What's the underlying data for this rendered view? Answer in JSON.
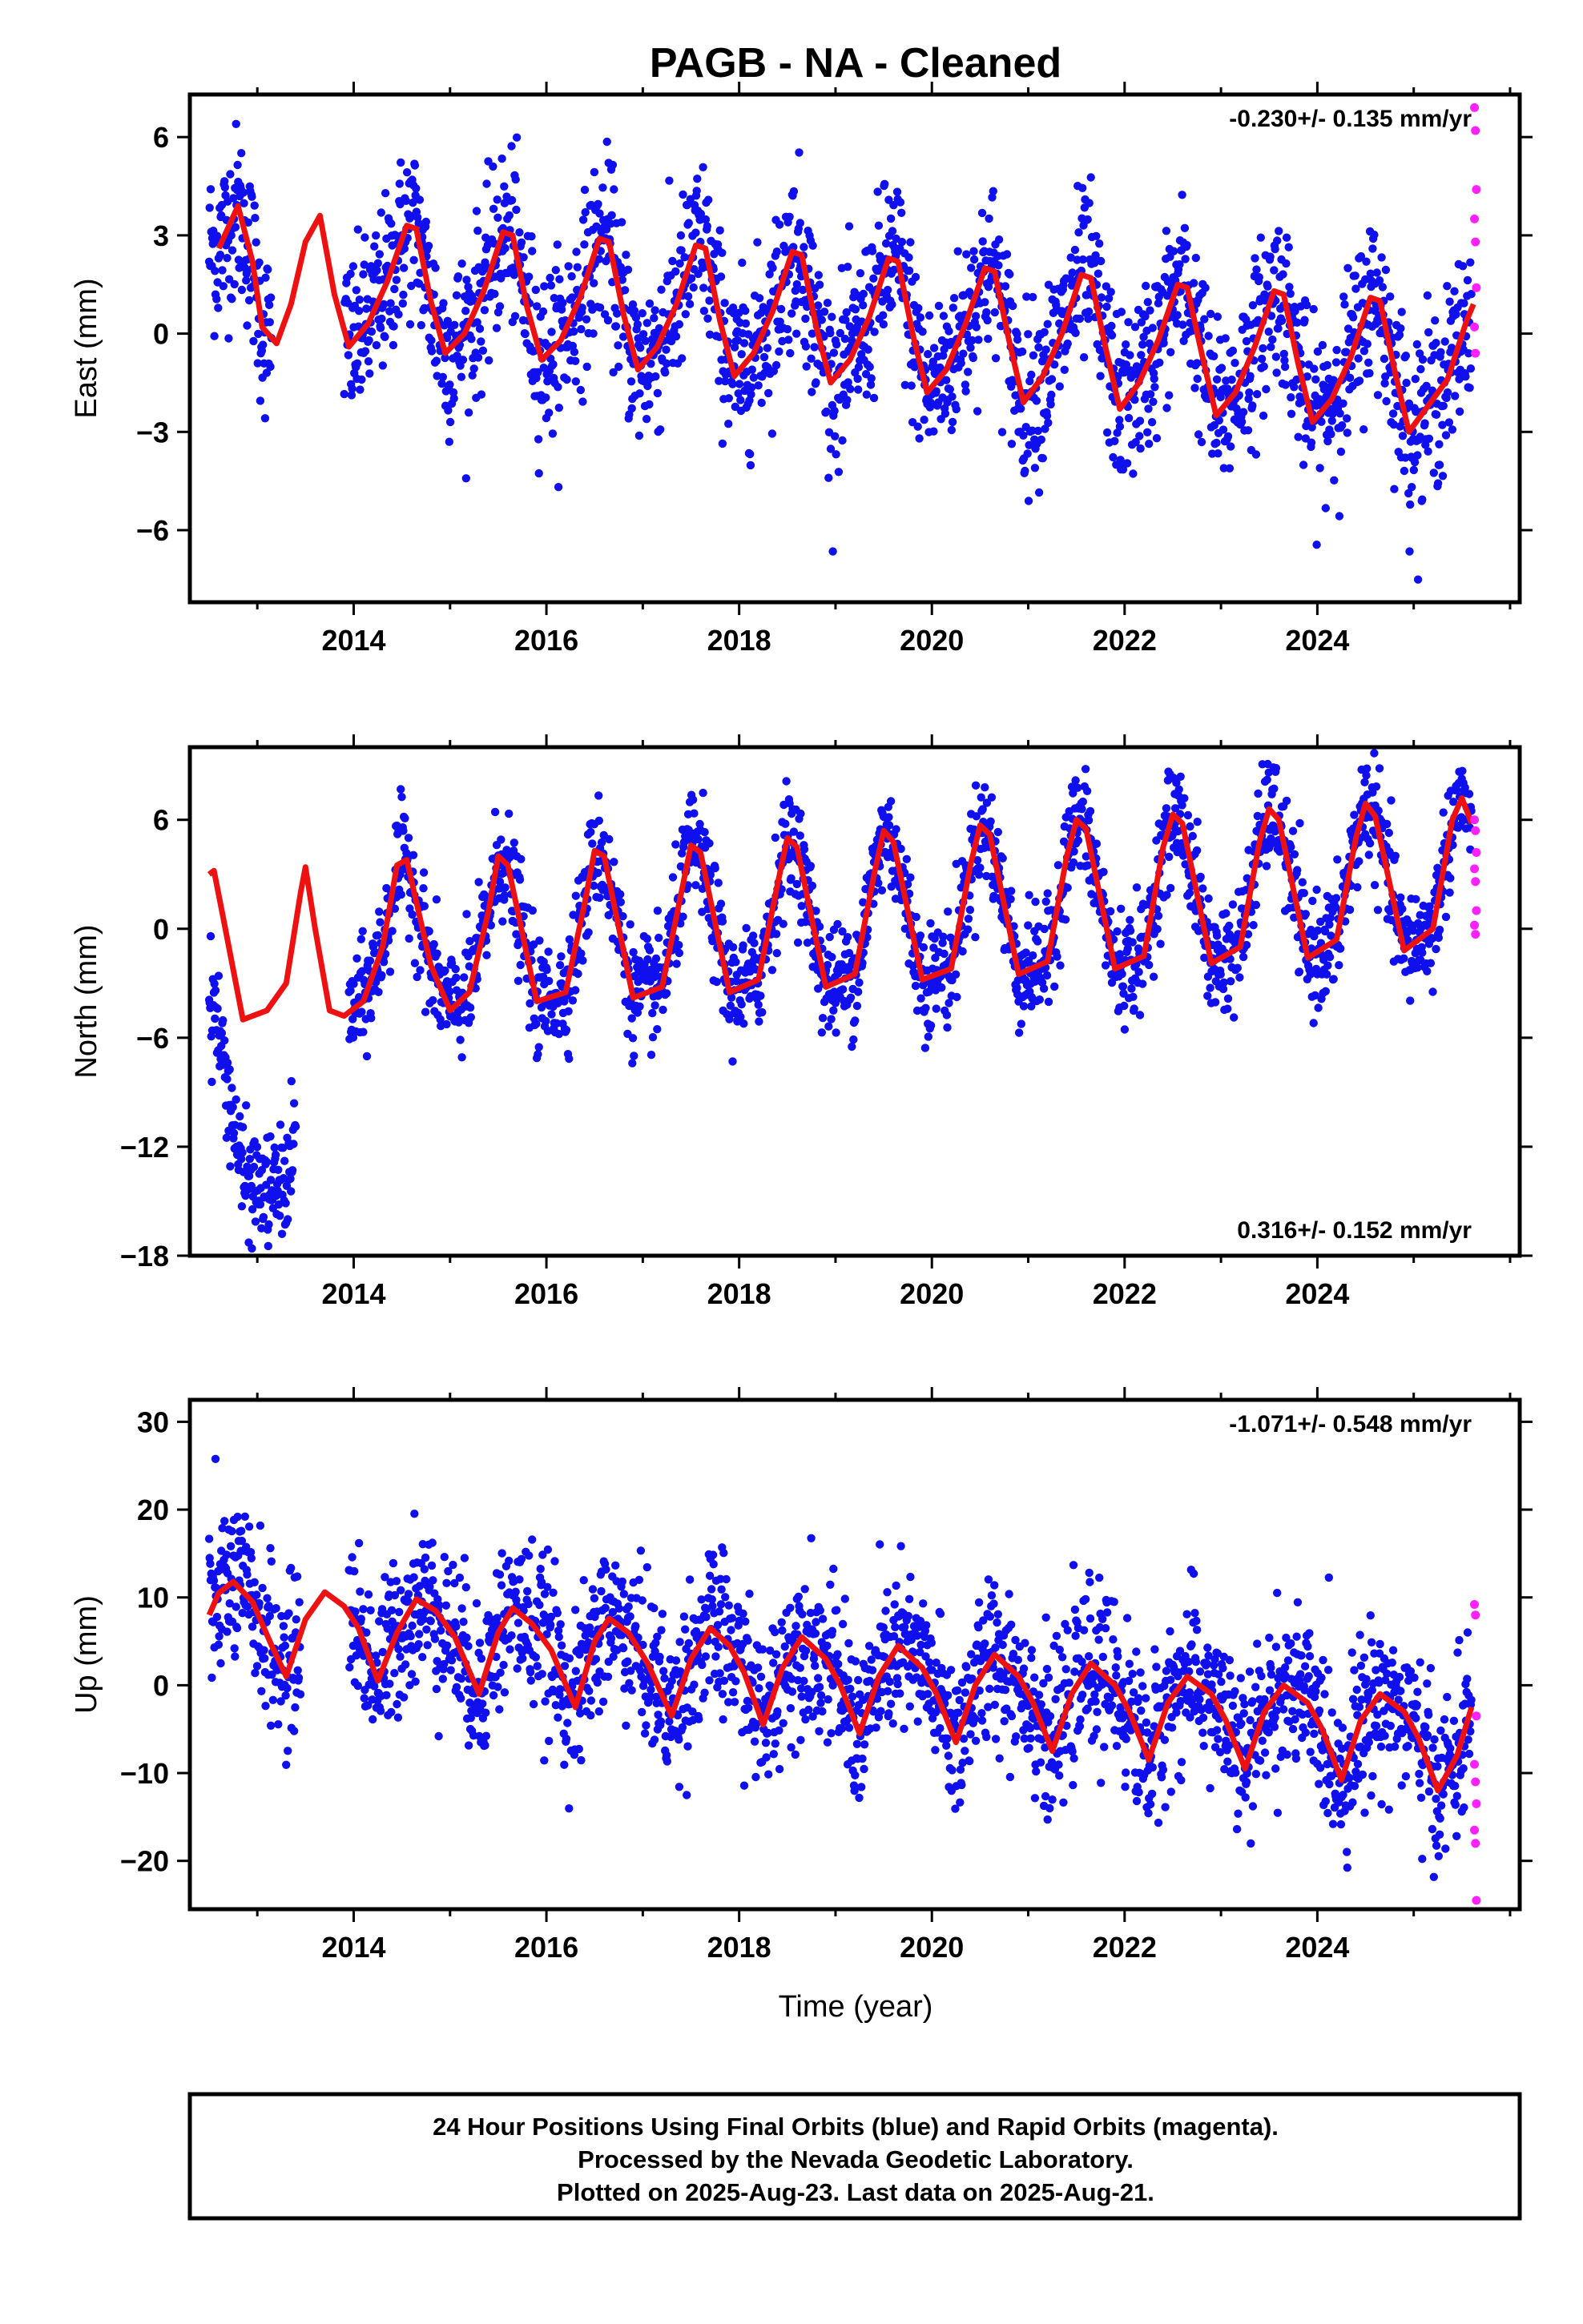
{
  "title": "PAGB  - NA - Cleaned",
  "colors": {
    "final": "#1010ee",
    "rapid": "#ff20ff",
    "model": "#ee1111",
    "frame": "#000000"
  },
  "xlabel": "Time (year)",
  "footer": {
    "line1": "24 Hour Positions Using Final Orbits (blue) and Rapid Orbits (magenta).",
    "line2": "Processed by the Nevada Geodetic Laboratory.",
    "line3": "Plotted on 2025-Aug-23. Last data on 2025-Aug-21."
  },
  "chart_data": [
    {
      "type": "scatter",
      "component": "East",
      "ylabel": "East (mm)",
      "rate_label": "-0.230+/- 0.135 mm/yr",
      "xlim": [
        2012.3,
        2026.1
      ],
      "ylim": [
        -8.2,
        7.3
      ],
      "yticks": [
        -6,
        -3,
        0,
        3,
        6
      ],
      "ytick_labels": [
        "−6",
        "−3",
        "0",
        "3",
        "6"
      ],
      "xticks": [
        2014,
        2016,
        2018,
        2020,
        2022,
        2024
      ],
      "xtick_labels": [
        "2014",
        "2016",
        "2018",
        "2020",
        "2022",
        "2024"
      ],
      "model": {
        "x": [
          2012.6,
          2012.8,
          2012.95,
          2013.05,
          2013.2,
          2013.35,
          2013.5,
          2013.65,
          2013.8,
          2013.95,
          2014.15,
          2014.35,
          2014.55,
          2014.65,
          2014.8,
          2014.95,
          2015.15,
          2015.35,
          2015.55,
          2015.65,
          2015.8,
          2015.95,
          2016.15,
          2016.35,
          2016.55,
          2016.65,
          2016.8,
          2016.95,
          2017.15,
          2017.35,
          2017.55,
          2017.65,
          2017.8,
          2017.95,
          2018.15,
          2018.35,
          2018.55,
          2018.65,
          2018.8,
          2018.95,
          2019.15,
          2019.35,
          2019.55,
          2019.65,
          2019.8,
          2019.95,
          2020.15,
          2020.35,
          2020.55,
          2020.65,
          2020.8,
          2020.95,
          2021.15,
          2021.35,
          2021.55,
          2021.65,
          2021.8,
          2021.95,
          2022.15,
          2022.35,
          2022.55,
          2022.65,
          2022.8,
          2022.95,
          2023.15,
          2023.35,
          2023.55,
          2023.65,
          2023.8,
          2023.95,
          2024.15,
          2024.35,
          2024.55,
          2024.65,
          2024.8,
          2024.95,
          2025.15,
          2025.35,
          2025.55,
          2025.62
        ],
        "y": [
          2.6,
          3.9,
          2.2,
          0.2,
          -0.3,
          0.9,
          2.8,
          3.6,
          1.2,
          -0.4,
          0.3,
          1.6,
          3.3,
          3.2,
          1.0,
          -0.6,
          0.0,
          1.3,
          3.1,
          3.0,
          0.8,
          -0.8,
          -0.2,
          1.1,
          2.9,
          2.8,
          0.6,
          -1.1,
          -0.4,
          0.9,
          2.7,
          2.6,
          0.4,
          -1.3,
          -0.6,
          0.7,
          2.5,
          2.4,
          0.2,
          -1.5,
          -0.8,
          0.5,
          2.3,
          2.2,
          0.0,
          -1.8,
          -1.1,
          0.3,
          2.0,
          1.9,
          -0.2,
          -2.1,
          -1.3,
          0.0,
          1.8,
          1.7,
          -0.4,
          -2.3,
          -1.5,
          -0.2,
          1.5,
          1.4,
          -0.6,
          -2.5,
          -1.8,
          -0.4,
          1.3,
          1.2,
          -0.9,
          -2.7,
          -2.0,
          -0.7,
          1.1,
          1.0,
          -1.1,
          -3.0,
          -2.2,
          -1.4,
          0.4,
          0.9
        ]
      },
      "rapid": {
        "x": [
          2025.63,
          2025.64,
          2025.65,
          2025.63,
          2025.64,
          2025.65,
          2025.63,
          2025.64
        ],
        "y": [
          6.9,
          6.2,
          4.4,
          3.5,
          2.8,
          1.4,
          0.2,
          -0.6
        ]
      },
      "final_summary": {
        "x_start": 2012.5,
        "x_end": 2025.6,
        "gaps": [
          [
            2013.15,
            2013.9
          ]
        ],
        "scatter_sd_mm": 1.3,
        "rate_mm_per_yr": -0.23
      }
    },
    {
      "type": "scatter",
      "component": "North",
      "ylabel": "North (mm)",
      "rate_label": "0.316+/- 0.152 mm/yr",
      "xlim": [
        2012.3,
        2026.1
      ],
      "ylim": [
        -18,
        10
      ],
      "yticks": [
        -18,
        -12,
        -6,
        0,
        6
      ],
      "ytick_labels": [
        "−18",
        "−12",
        "−6",
        "0",
        "6"
      ],
      "xticks": [
        2014,
        2016,
        2018,
        2020,
        2022,
        2024
      ],
      "xtick_labels": [
        "2014",
        "2016",
        "2018",
        "2020",
        "2022",
        "2024"
      ],
      "model": {
        "x": [
          2012.5,
          2012.55,
          2012.65,
          2012.85,
          2013.1,
          2013.3,
          2013.45,
          2013.5,
          2013.6,
          2013.75,
          2013.9,
          2014.1,
          2014.3,
          2014.45,
          2014.55,
          2014.8,
          2015.0,
          2015.2,
          2015.4,
          2015.5,
          2015.6,
          2015.9,
          2016.2,
          2016.4,
          2016.5,
          2016.6,
          2016.9,
          2017.2,
          2017.4,
          2017.5,
          2017.6,
          2017.9,
          2018.2,
          2018.4,
          2018.5,
          2018.6,
          2018.9,
          2019.2,
          2019.4,
          2019.5,
          2019.6,
          2019.9,
          2020.2,
          2020.4,
          2020.5,
          2020.6,
          2020.9,
          2021.2,
          2021.4,
          2021.5,
          2021.6,
          2021.9,
          2022.2,
          2022.4,
          2022.5,
          2022.6,
          2022.9,
          2023.2,
          2023.4,
          2023.5,
          2023.6,
          2023.9,
          2024.2,
          2024.4,
          2024.5,
          2024.6,
          2024.9,
          2025.2,
          2025.4,
          2025.5,
          2025.6
        ],
        "y": [
          3.0,
          3.2,
          0.5,
          -5.0,
          -4.5,
          -3.0,
          2.0,
          3.4,
          0.0,
          -4.5,
          -4.8,
          -4.0,
          -1.0,
          3.5,
          3.8,
          -2.0,
          -4.5,
          -3.5,
          1.0,
          4.0,
          3.5,
          -4.0,
          -3.5,
          1.5,
          4.3,
          4.0,
          -3.8,
          -3.2,
          2.0,
          4.6,
          4.2,
          -3.5,
          -2.8,
          2.5,
          5.0,
          4.5,
          -3.2,
          -2.5,
          3.0,
          5.4,
          4.8,
          -2.8,
          -2.2,
          3.5,
          5.7,
          5.2,
          -2.5,
          -1.8,
          4.0,
          6.0,
          5.5,
          -2.2,
          -1.5,
          4.5,
          6.3,
          5.8,
          -1.9,
          -1.0,
          4.8,
          6.6,
          6.0,
          -1.6,
          -0.6,
          5.0,
          6.9,
          6.2,
          -1.2,
          0.0,
          6.0,
          7.2,
          5.8
        ]
      },
      "rapid": {
        "x": [
          2025.63,
          2025.64,
          2025.65,
          2025.63,
          2025.64,
          2025.65,
          2025.63,
          2025.64
        ],
        "y": [
          6.0,
          5.4,
          4.2,
          3.3,
          2.6,
          1.0,
          0.2,
          -0.3
        ]
      },
      "final_summary": {
        "x_start": 2012.5,
        "x_end": 2025.6,
        "gaps": [
          [
            2013.4,
            2013.95
          ]
        ],
        "scatter_sd_mm": 1.5,
        "early_offset_mm": -7.0,
        "rate_mm_per_yr": 0.316
      }
    },
    {
      "type": "scatter",
      "component": "Up",
      "ylabel": "Up (mm)",
      "rate_label": "-1.071+/- 0.548 mm/yr",
      "xlim": [
        2012.3,
        2026.1
      ],
      "ylim": [
        -25.5,
        32.5
      ],
      "yticks": [
        -20,
        -10,
        0,
        10,
        20,
        30
      ],
      "ytick_labels": [
        "−20",
        "−10",
        "0",
        "10",
        "20",
        "30"
      ],
      "xticks": [
        2014,
        2016,
        2018,
        2020,
        2022,
        2024
      ],
      "xtick_labels": [
        "2014",
        "2016",
        "2018",
        "2020",
        "2022",
        "2024"
      ],
      "model": {
        "x": [
          2012.5,
          2012.6,
          2012.75,
          2012.95,
          2013.15,
          2013.3,
          2013.5,
          2013.7,
          2013.9,
          2014.05,
          2014.25,
          2014.45,
          2014.65,
          2014.85,
          2015.05,
          2015.3,
          2015.5,
          2015.65,
          2015.85,
          2016.05,
          2016.3,
          2016.5,
          2016.65,
          2016.85,
          2017.05,
          2017.3,
          2017.5,
          2017.7,
          2017.9,
          2018.05,
          2018.25,
          2018.45,
          2018.65,
          2018.9,
          2019.05,
          2019.25,
          2019.45,
          2019.65,
          2019.9,
          2020.05,
          2020.25,
          2020.45,
          2020.65,
          2020.9,
          2021.05,
          2021.25,
          2021.45,
          2021.65,
          2021.9,
          2022.05,
          2022.25,
          2022.45,
          2022.65,
          2022.9,
          2023.05,
          2023.25,
          2023.45,
          2023.65,
          2023.9,
          2024.05,
          2024.25,
          2024.45,
          2024.65,
          2024.9,
          2025.05,
          2025.25,
          2025.45,
          2025.6
        ],
        "y": [
          8.0,
          10.5,
          11.8,
          9.5,
          4.5,
          1.0,
          7.5,
          10.6,
          9.0,
          6.5,
          0.5,
          6.0,
          9.8,
          8.5,
          5.5,
          -1.0,
          6.0,
          8.8,
          7.0,
          4.0,
          -2.5,
          5.0,
          7.6,
          6.0,
          2.5,
          -3.5,
          3.0,
          6.5,
          4.5,
          1.5,
          -4.5,
          2.0,
          5.5,
          3.0,
          0.0,
          -5.5,
          1.0,
          4.5,
          2.0,
          -1.0,
          -6.5,
          0.0,
          3.5,
          1.0,
          -2.0,
          -7.5,
          -1.0,
          2.5,
          0.0,
          -3.0,
          -8.5,
          -2.0,
          1.0,
          -1.0,
          -4.0,
          -9.5,
          -3.0,
          0.0,
          -2.0,
          -5.0,
          -10.8,
          -4.0,
          -1.0,
          -3.0,
          -6.0,
          -12.0,
          -8.0,
          -2.5
        ]
      },
      "rapid": {
        "x": [
          2025.63,
          2025.64,
          2025.65,
          2025.63,
          2025.64,
          2025.65,
          2025.63,
          2025.64,
          2025.65
        ],
        "y": [
          9.2,
          8.0,
          -3.5,
          -9.0,
          -11.0,
          -13.5,
          -16.5,
          -18.0,
          -24.5
        ]
      },
      "final_summary": {
        "x_start": 2012.5,
        "x_end": 2025.6,
        "gaps": [
          [
            2013.45,
            2013.95
          ]
        ],
        "scatter_sd_mm": 4.5,
        "rate_mm_per_yr": -1.071
      }
    }
  ]
}
